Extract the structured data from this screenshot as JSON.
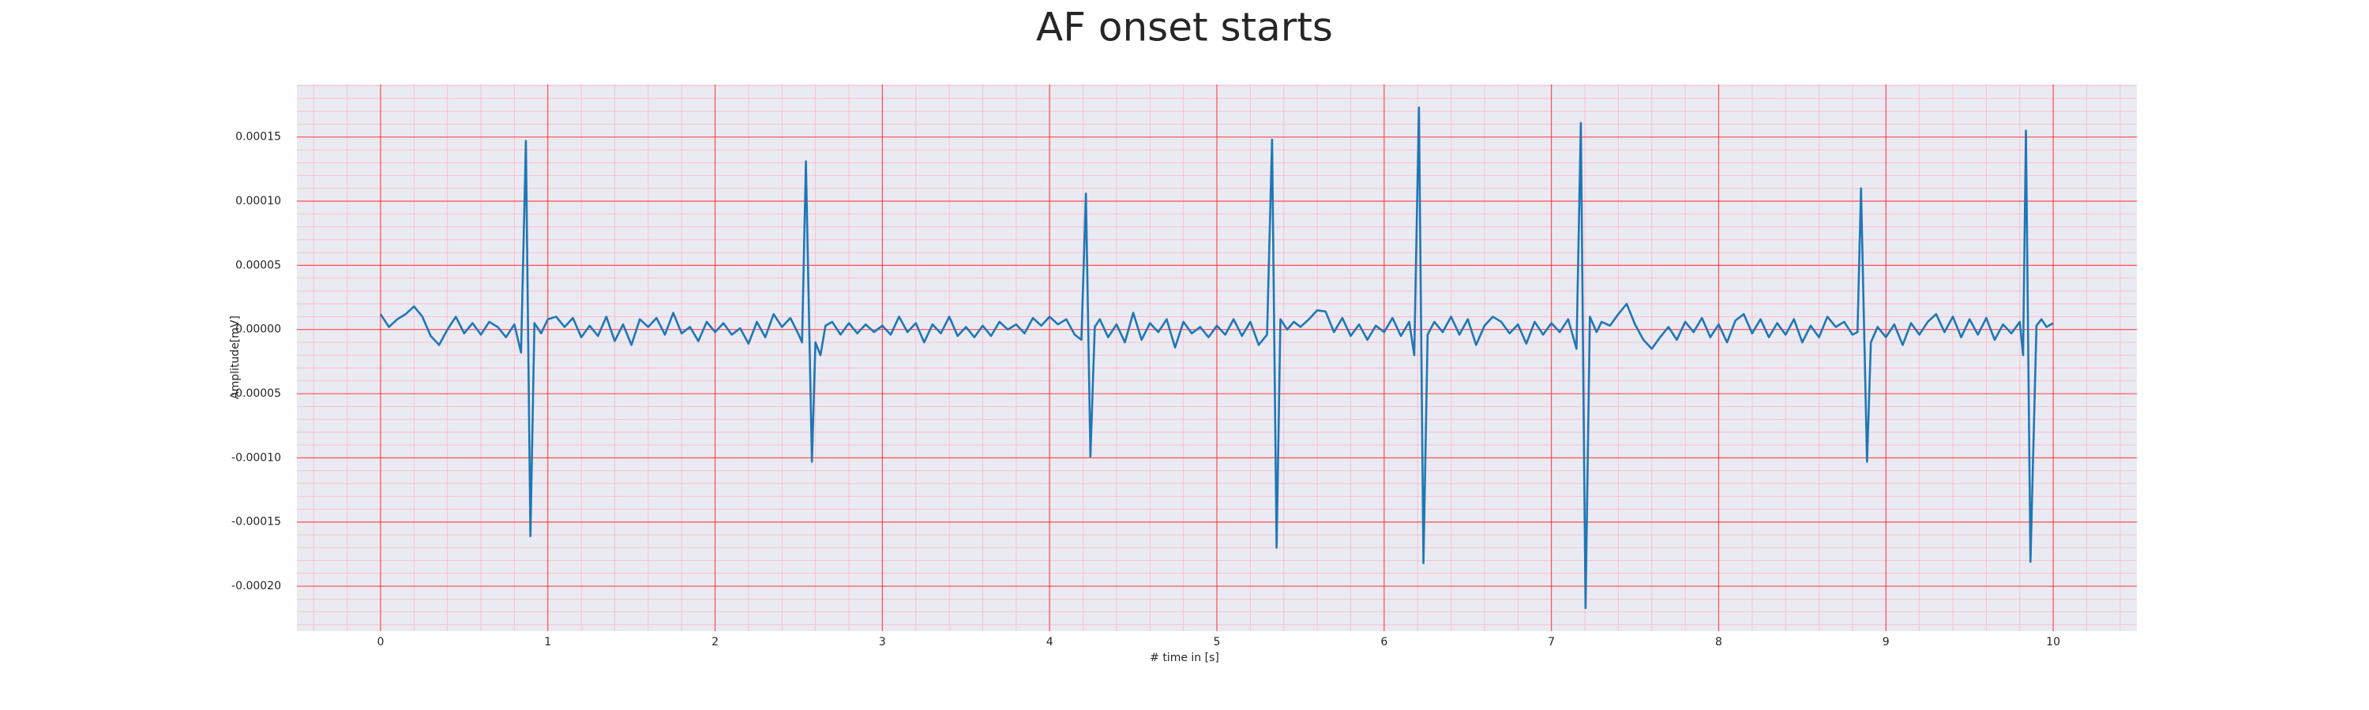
{
  "chart_data": {
    "type": "line",
    "title": "AF onset starts",
    "x_label": "# time in [s]",
    "y_label": "Amplitude[mV]",
    "color": "#1f77b4",
    "grid": true,
    "minor_grid": true,
    "xlim": [
      -0.5,
      10.5
    ],
    "xticks": [
      0,
      1,
      2,
      3,
      4,
      5,
      6,
      7,
      8,
      9,
      10
    ],
    "ylim": [
      -0.000235,
      0.000191
    ],
    "yticks": [
      {
        "value": -0.0002,
        "label": "-0.00020"
      },
      -0.00015,
      {
        "value": -0.0001,
        "label": "-0.00010"
      },
      -5e-05,
      {
        "value": 0,
        "label": "0.00000"
      },
      5e-05,
      {
        "value": 0.0001,
        "label": "0.00010"
      },
      0.00015
    ],
    "x": [
      0,
      0.05,
      0.1,
      0.15,
      0.2,
      0.25,
      0.3,
      0.35,
      0.4,
      0.45,
      0.5,
      0.55,
      0.6,
      0.65,
      0.7,
      0.75,
      0.8,
      0.84,
      0.869,
      0.896,
      0.92,
      0.96,
      1.0,
      1.05,
      1.1,
      1.15,
      1.2,
      1.25,
      1.3,
      1.35,
      1.4,
      1.45,
      1.5,
      1.55,
      1.6,
      1.65,
      1.7,
      1.75,
      1.8,
      1.85,
      1.9,
      1.95,
      2.0,
      2.05,
      2.1,
      2.15,
      2.2,
      2.25,
      2.3,
      2.35,
      2.4,
      2.45,
      2.5,
      2.52,
      2.543,
      2.579,
      2.6,
      2.63,
      2.66,
      2.7,
      2.75,
      2.8,
      2.85,
      2.9,
      2.95,
      3.0,
      3.05,
      3.1,
      3.15,
      3.2,
      3.25,
      3.3,
      3.35,
      3.4,
      3.45,
      3.5,
      3.55,
      3.6,
      3.65,
      3.7,
      3.75,
      3.8,
      3.85,
      3.9,
      3.95,
      4.0,
      4.05,
      4.1,
      4.15,
      4.19,
      4.217,
      4.244,
      4.27,
      4.3,
      4.35,
      4.4,
      4.45,
      4.5,
      4.55,
      4.6,
      4.65,
      4.7,
      4.75,
      4.8,
      4.85,
      4.9,
      4.95,
      5.0,
      5.05,
      5.1,
      5.15,
      5.2,
      5.25,
      5.3,
      5.33,
      5.357,
      5.38,
      5.42,
      5.46,
      5.5,
      5.55,
      5.6,
      5.65,
      5.7,
      5.75,
      5.8,
      5.85,
      5.9,
      5.95,
      6.0,
      6.05,
      6.1,
      6.15,
      6.18,
      6.208,
      6.235,
      6.26,
      6.3,
      6.35,
      6.4,
      6.45,
      6.5,
      6.55,
      6.6,
      6.65,
      6.7,
      6.75,
      6.8,
      6.85,
      6.9,
      6.95,
      7.0,
      7.05,
      7.1,
      7.15,
      7.176,
      7.204,
      7.23,
      7.27,
      7.3,
      7.35,
      7.4,
      7.45,
      7.5,
      7.55,
      7.6,
      7.65,
      7.7,
      7.75,
      7.8,
      7.85,
      7.9,
      7.95,
      8.0,
      8.05,
      8.1,
      8.15,
      8.2,
      8.25,
      8.3,
      8.35,
      8.4,
      8.45,
      8.5,
      8.55,
      8.6,
      8.65,
      8.7,
      8.75,
      8.8,
      8.83,
      8.851,
      8.887,
      8.91,
      8.95,
      9.0,
      9.05,
      9.1,
      9.15,
      9.2,
      9.25,
      9.3,
      9.35,
      9.4,
      9.45,
      9.5,
      9.55,
      9.6,
      9.65,
      9.7,
      9.75,
      9.8,
      9.82,
      9.837,
      9.864,
      9.9,
      9.93,
      9.96,
      10.0
    ],
    "values": [
      1.2e-05,
      2e-06,
      8e-06,
      1.2e-05,
      1.8e-05,
      1e-05,
      -5e-06,
      -1.2e-05,
      0,
      1e-05,
      -3e-06,
      5e-06,
      -4e-06,
      6e-06,
      2e-06,
      -6e-06,
      4e-06,
      -1.8e-05,
      0.000147,
      -0.000161,
      5e-06,
      -3e-06,
      8e-06,
      1e-05,
      2e-06,
      9e-06,
      -6e-06,
      3e-06,
      -5e-06,
      1e-05,
      -9e-06,
      4e-06,
      -1.2e-05,
      8e-06,
      2e-06,
      9e-06,
      -4e-06,
      1.3e-05,
      -3e-06,
      2e-06,
      -9e-06,
      6e-06,
      -2e-06,
      5e-06,
      -4e-06,
      1e-06,
      -1.1e-05,
      6e-06,
      -6e-06,
      1.2e-05,
      2e-06,
      9e-06,
      -4e-06,
      -1e-05,
      0.000131,
      -0.000103,
      -1e-05,
      -2e-05,
      3e-06,
      6e-06,
      -4e-06,
      5e-06,
      -3e-06,
      4e-06,
      -2e-06,
      3e-06,
      -4e-06,
      1e-05,
      -2e-06,
      5e-06,
      -1e-05,
      4e-06,
      -3e-06,
      1e-05,
      -5e-06,
      2e-06,
      -6e-06,
      3e-06,
      -5e-06,
      6e-06,
      0,
      4e-06,
      -3e-06,
      9e-06,
      3e-06,
      1e-05,
      4e-06,
      8e-06,
      -4e-06,
      -8e-06,
      0.000106,
      -9.9e-05,
      2e-06,
      8e-06,
      -6e-06,
      4e-06,
      -1e-05,
      1.3e-05,
      -8e-06,
      5e-06,
      -2e-06,
      8e-06,
      -1.4e-05,
      6e-06,
      -3e-06,
      2e-06,
      -6e-06,
      3e-06,
      -4e-06,
      8e-06,
      -5e-06,
      6e-06,
      -1.2e-05,
      -4e-06,
      0.000148,
      -0.00017,
      8e-06,
      0,
      6e-06,
      2e-06,
      8e-06,
      1.5e-05,
      1.4e-05,
      -2e-06,
      9e-06,
      -5e-06,
      4e-06,
      -8e-06,
      3e-06,
      -2e-06,
      9e-06,
      -5e-06,
      6e-06,
      -2e-05,
      0.000173,
      -0.000182,
      -4e-06,
      6e-06,
      -2e-06,
      1e-05,
      -4e-06,
      8e-06,
      -1.2e-05,
      3e-06,
      1e-05,
      6e-06,
      -3e-06,
      4e-06,
      -1.1e-05,
      6e-06,
      -4e-06,
      5e-06,
      -2e-06,
      8e-06,
      -1.5e-05,
      0.000161,
      -0.000217,
      1e-05,
      -2e-06,
      6e-06,
      3e-06,
      1.2e-05,
      2e-05,
      4e-06,
      -8e-06,
      -1.5e-05,
      -6e-06,
      2e-06,
      -8e-06,
      6e-06,
      -2e-06,
      9e-06,
      -6e-06,
      4e-06,
      -1e-05,
      7e-06,
      1.2e-05,
      -3e-06,
      8e-06,
      -6e-06,
      5e-06,
      -4e-06,
      8e-06,
      -1e-05,
      3e-06,
      -6e-06,
      1e-05,
      2e-06,
      6e-06,
      -4e-06,
      -2e-06,
      0.00011,
      -0.000103,
      -1e-05,
      2e-06,
      -6e-06,
      4e-06,
      -1.2e-05,
      5e-06,
      -4e-06,
      6e-06,
      1.2e-05,
      -2e-06,
      1e-05,
      -6e-06,
      8e-06,
      -4e-06,
      9e-06,
      -8e-06,
      4e-06,
      -3e-06,
      6e-06,
      -2e-05,
      0.000155,
      -0.000181,
      3e-06,
      8e-06,
      2e-06,
      5e-06
    ]
  }
}
